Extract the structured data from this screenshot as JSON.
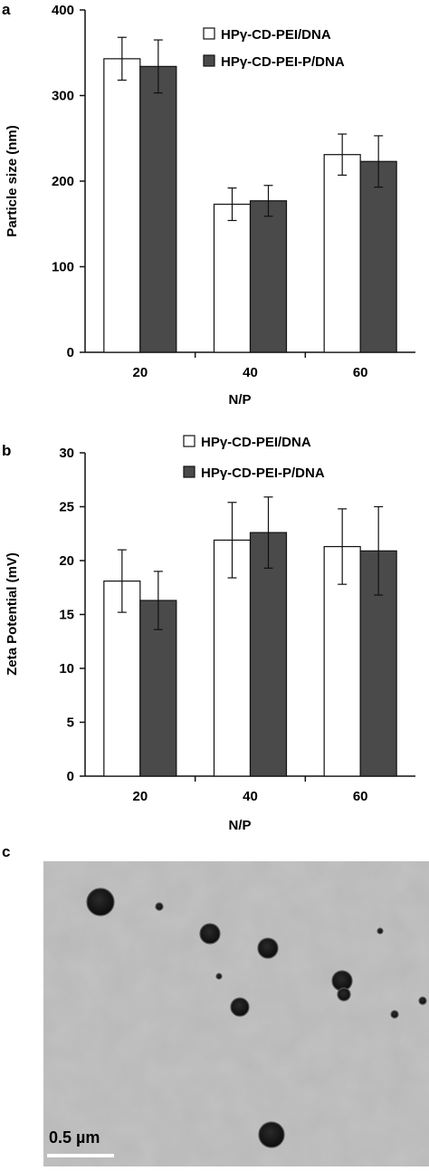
{
  "panels": {
    "a_label": "a",
    "b_label": "b",
    "c_label": "c"
  },
  "colors": {
    "series_1_fill": "#ffffff",
    "series_2_fill": "#4a4a4a",
    "axis": "#111111",
    "micrograph_background": "#b8b8b8",
    "particle": "#141414"
  },
  "chart_data": [
    {
      "type": "bar",
      "categories": [
        "20",
        "40",
        "60"
      ],
      "xlabel": "N/P",
      "ylabel": "Particle size (nm)",
      "ylim": [
        0,
        400
      ],
      "yticks": [
        0,
        100,
        200,
        300,
        400
      ],
      "grid": false,
      "legend_position": "top-right",
      "series": [
        {
          "name": "HPγ-CD-PEI/DNA",
          "values": [
            343,
            173,
            231
          ],
          "errors": [
            25,
            19,
            24
          ]
        },
        {
          "name": "HPγ-CD-PEI-P/DNA",
          "values": [
            334,
            177,
            223
          ],
          "errors": [
            31,
            18,
            30
          ]
        }
      ]
    },
    {
      "type": "bar",
      "categories": [
        "20",
        "40",
        "60"
      ],
      "xlabel": "N/P",
      "ylabel": "Zeta Potential (mV)",
      "ylim": [
        0,
        30
      ],
      "yticks": [
        0,
        5,
        10,
        15,
        20,
        25,
        30
      ],
      "grid": false,
      "legend_position": "top",
      "series": [
        {
          "name": "HPγ-CD-PEI/DNA",
          "values": [
            18.1,
            21.9,
            21.3
          ],
          "errors": [
            2.9,
            3.5,
            3.5
          ]
        },
        {
          "name": "HPγ-CD-PEI-P/DNA",
          "values": [
            16.3,
            22.6,
            20.9
          ],
          "errors": [
            2.7,
            3.3,
            4.1
          ]
        }
      ]
    }
  ],
  "micrograph": {
    "scale_bar_label": "0.5 µm"
  }
}
